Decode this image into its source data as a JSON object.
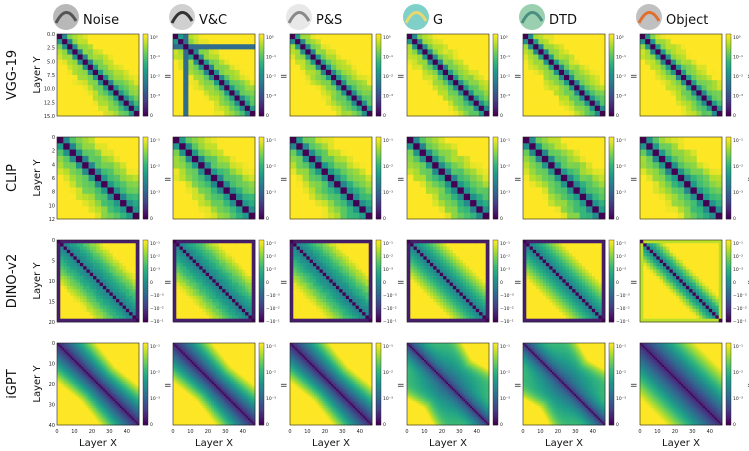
{
  "colormap": "viridis",
  "viridis_stops": [
    "#440154",
    "#482878",
    "#3e4989",
    "#31688e",
    "#26828e",
    "#1f9e89",
    "#35b779",
    "#6ece58",
    "#b5de2b",
    "#fde725"
  ],
  "column_headers": [
    "Noise",
    "V&C",
    "P&S",
    "G",
    "DTD",
    "Object"
  ],
  "row_labels": [
    "VGG-19",
    "CLIP",
    "DINO-v2",
    "iGPT"
  ],
  "x_axis_label": "Layer X",
  "y_axis_label": "Layer Y",
  "colorbar_separator": "=",
  "chart_data": [
    {
      "type": "heatmap",
      "model": "VGG-19",
      "n_layers": 16,
      "ylabel": "Layer Y",
      "y_ticks": [
        "0.0",
        "2.5",
        "5.0",
        "7.5",
        "10.0",
        "12.5",
        "15.0"
      ],
      "x_ticks": [],
      "colorbar_ticks": [
        "10⁰",
        "10⁻¹",
        "10⁻²",
        "10⁻³",
        "0"
      ],
      "pattern": "blocky",
      "columns": [
        "Noise",
        "V&C",
        "P&S",
        "G",
        "DTD",
        "Object"
      ]
    },
    {
      "type": "heatmap",
      "model": "CLIP",
      "n_layers": 13,
      "ylabel": "Layer Y",
      "y_ticks": [
        "0",
        "2",
        "4",
        "6",
        "8",
        "10",
        "12"
      ],
      "x_ticks": [],
      "colorbar_ticks": [
        "10⁻¹",
        "10⁻²",
        "10⁻³",
        "0"
      ],
      "pattern": "blocky",
      "columns": [
        "Noise",
        "V&C",
        "P&S",
        "G",
        "DTD",
        "Object"
      ]
    },
    {
      "type": "heatmap",
      "model": "DINO-v2",
      "n_layers": 25,
      "ylabel": "Layer Y",
      "y_ticks": [
        "0",
        "5",
        "10",
        "15",
        "20"
      ],
      "x_ticks": [],
      "colorbar_ticks": [
        "10⁻¹",
        "10⁻²",
        "10⁻³",
        "0",
        "−10⁻³",
        "−10⁻²",
        "−10⁻¹"
      ],
      "pattern": "blocky-edge",
      "columns": [
        "Noise",
        "V&C",
        "P&S",
        "G",
        "DTD",
        "Object"
      ]
    },
    {
      "type": "heatmap",
      "model": "iGPT",
      "n_layers": 48,
      "ylabel": "Layer Y",
      "y_ticks": [
        "0",
        "10",
        "20",
        "30",
        "40"
      ],
      "xlabel": "Layer X",
      "x_ticks": [
        "0",
        "10",
        "20",
        "30",
        "40"
      ],
      "colorbar_ticks": [
        "10⁻¹",
        "10⁻²",
        "10⁻³",
        "0"
      ],
      "pattern": "smooth",
      "columns": [
        "Noise",
        "V&C",
        "P&S",
        "G",
        "DTD",
        "Object"
      ]
    }
  ]
}
